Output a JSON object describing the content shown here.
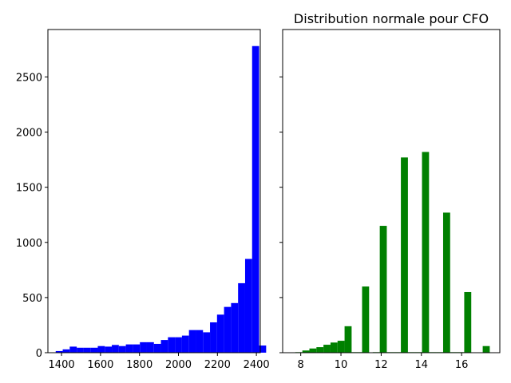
{
  "chart_data": [
    {
      "type": "bar",
      "title": "",
      "xlabel": "",
      "ylabel": "",
      "color": "#0000ff",
      "xlim": [
        1330,
        2420
      ],
      "ylim": [
        0,
        2930
      ],
      "xticks": [
        1400,
        1600,
        1800,
        2000,
        2200,
        2400
      ],
      "yticks": [
        0,
        500,
        1000,
        1500,
        2000,
        2500
      ],
      "bin_edges": [
        1370,
        1406,
        1442,
        1478,
        1514,
        1550,
        1586,
        1622,
        1658,
        1694,
        1730,
        1766,
        1802,
        1838,
        1874,
        1910,
        1946,
        1982,
        2018,
        2054,
        2090,
        2126,
        2162,
        2198,
        2234,
        2270,
        2306,
        2342,
        2378,
        2414
      ],
      "values": [
        15,
        30,
        55,
        45,
        45,
        45,
        60,
        55,
        70,
        60,
        75,
        75,
        95,
        95,
        80,
        115,
        140,
        140,
        155,
        205,
        205,
        185,
        275,
        345,
        415,
        450,
        630,
        850,
        2780,
        65
      ]
    },
    {
      "type": "bar",
      "title": "Distribution normale pour CFO",
      "xlabel": "",
      "ylabel": "",
      "color": "#008000",
      "xlim": [
        7.1,
        17.9
      ],
      "ylim": [
        0,
        2930
      ],
      "xticks": [
        8,
        10,
        12,
        14,
        16
      ],
      "bin_width": 0.35,
      "bars": [
        {
          "x": 7.38,
          "value": 3
        },
        {
          "x": 7.73,
          "value": 5
        },
        {
          "x": 8.08,
          "value": 20
        },
        {
          "x": 8.43,
          "value": 38
        },
        {
          "x": 8.78,
          "value": 50
        },
        {
          "x": 9.13,
          "value": 72
        },
        {
          "x": 9.48,
          "value": 92
        },
        {
          "x": 9.83,
          "value": 108
        },
        {
          "x": 10.18,
          "value": 240
        },
        {
          "x": 10.53,
          "value": 5
        },
        {
          "x": 10.88,
          "value": 5
        },
        {
          "x": 11.05,
          "value": 600
        },
        {
          "x": 11.58,
          "value": 5
        },
        {
          "x": 11.93,
          "value": 1150
        },
        {
          "x": 12.28,
          "value": 5
        },
        {
          "x": 12.63,
          "value": 5
        },
        {
          "x": 12.98,
          "value": 1770
        },
        {
          "x": 13.33,
          "value": 5
        },
        {
          "x": 13.68,
          "value": 5
        },
        {
          "x": 14.03,
          "value": 1820
        },
        {
          "x": 14.38,
          "value": 5
        },
        {
          "x": 14.73,
          "value": 5
        },
        {
          "x": 15.08,
          "value": 1270
        },
        {
          "x": 15.43,
          "value": 5
        },
        {
          "x": 15.78,
          "value": 5
        },
        {
          "x": 16.13,
          "value": 550
        },
        {
          "x": 16.48,
          "value": 3
        },
        {
          "x": 16.83,
          "value": 3
        },
        {
          "x": 17.05,
          "value": 60
        },
        {
          "x": 17.38,
          "value": 2
        }
      ]
    }
  ]
}
